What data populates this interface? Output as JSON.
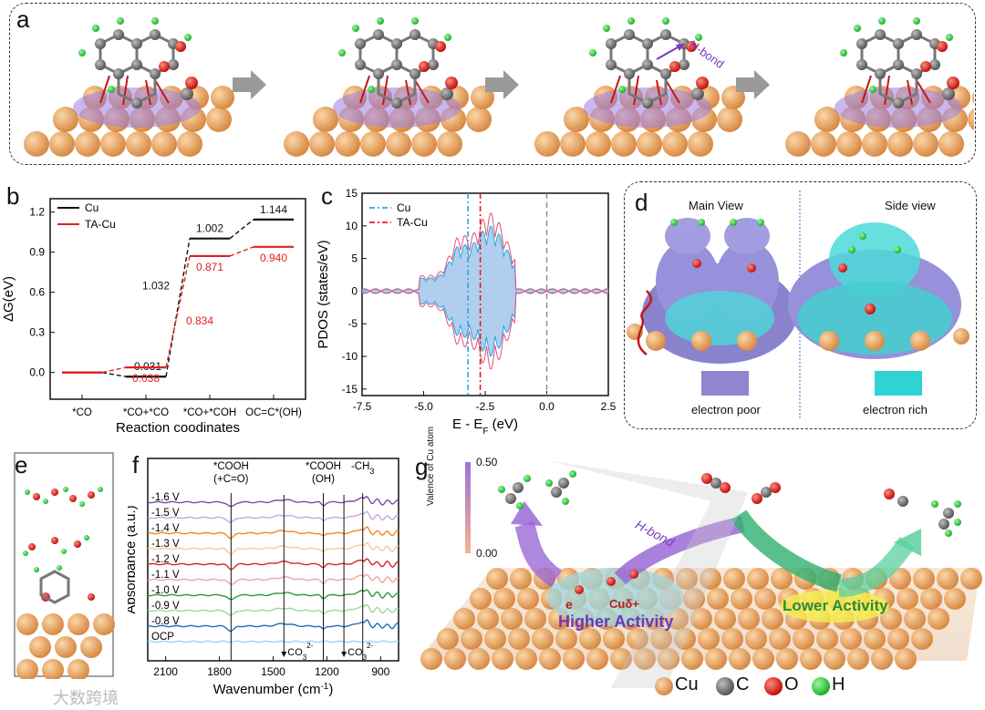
{
  "panels": {
    "a": {
      "label": "a",
      "annotation": "H-bond"
    },
    "b": {
      "label": "b"
    },
    "c": {
      "label": "c"
    },
    "d": {
      "label": "d",
      "main_view": "Main View",
      "side_view": "Side view",
      "poor": "electron poor",
      "rich": "electron rich",
      "poor_color": "#8f86cf",
      "rich_color": "#2fd3d3"
    },
    "e": {
      "label": "e"
    },
    "f": {
      "label": "f"
    },
    "g": {
      "label": "g",
      "hbond": "H-bond",
      "electron": "e",
      "cu_label": "Cuδ+",
      "higher": "Higher Activity",
      "lower": "Lower Activity",
      "colorbar_title": "Valence of Cu atom",
      "colorbar_max": "0.50",
      "colorbar_min": "0.00",
      "legend": [
        {
          "name": "Cu",
          "color": "#e5a468"
        },
        {
          "name": "C",
          "color": "#6b6b6b"
        },
        {
          "name": "O",
          "color": "#e0221f"
        },
        {
          "name": "H",
          "color": "#26d33a"
        }
      ]
    }
  },
  "chart_data": [
    {
      "type": "line",
      "panel": "b",
      "ylabel": "ΔG(eV)",
      "xlabel": "Reaction coodinates",
      "categories": [
        "*CO",
        "*CO+*CO",
        "*CO+*COH",
        "OC=C*(OH)"
      ],
      "ylim": [
        -0.2,
        1.3
      ],
      "yticks": [
        "0.0",
        "0.3",
        "0.6",
        "0.9",
        "1.2"
      ],
      "series": [
        {
          "name": "Cu",
          "color": "#111111",
          "values": [
            0.0,
            -0.031,
            1.002,
            1.144
          ],
          "labels": [
            "",
            "-0.031",
            "1.002",
            "1.144"
          ],
          "barrier_label": "1.032"
        },
        {
          "name": "TA-Cu",
          "color": "#e02020",
          "values": [
            0.0,
            0.038,
            0.871,
            0.94
          ],
          "labels": [
            "",
            "0.038",
            "0.871",
            "0.940"
          ],
          "barrier_label": "0.834"
        }
      ]
    },
    {
      "type": "area",
      "panel": "c",
      "ylabel": "PDOS (states/eV)",
      "xlabel": "E - E",
      "xlabel_sub": "F",
      "xlabel_unit": " (eV)",
      "xlim": [
        -7.5,
        2.5
      ],
      "ylim": [
        -16,
        15
      ],
      "xticks": [
        "-7.5",
        "-5.0",
        "-2.5",
        "0.0",
        "2.5"
      ],
      "yticks": [
        "15",
        "10",
        "5",
        "0",
        "-5",
        "-10",
        "-15"
      ],
      "series": [
        {
          "name": "Cu",
          "color": "#2aa8d8",
          "d_band_center": -3.2
        },
        {
          "name": "TA-Cu",
          "color": "#e02020",
          "d_band_center": -2.7
        }
      ],
      "fermi_level": 0.0
    },
    {
      "type": "line",
      "panel": "f",
      "ylabel": "Absorbance (a.u.)",
      "xlabel": "Wavenumber (cm",
      "xlabel_sup": "-1",
      "xlabel_end": ")",
      "xlim": [
        2200,
        800
      ],
      "xticks": [
        "2100",
        "1800",
        "1500",
        "1200",
        "900"
      ],
      "series": [
        {
          "name": "-1.6 V",
          "color": "#7b4aa8"
        },
        {
          "name": "-1.5 V",
          "color": "#c7a6e0"
        },
        {
          "name": "-1.4 V",
          "color": "#f08a1c"
        },
        {
          "name": "-1.3 V",
          "color": "#f5c89a"
        },
        {
          "name": "-1.2 V",
          "color": "#d6242a"
        },
        {
          "name": "-1.1 V",
          "color": "#f4a3a3"
        },
        {
          "name": "-1.0 V",
          "color": "#2e9a3a"
        },
        {
          "name": "-0.9 V",
          "color": "#9ed79a"
        },
        {
          "name": "-0.8 V",
          "color": "#1f6fb8"
        },
        {
          "name": "OCP",
          "color": "#9fd3ef"
        }
      ],
      "annotations": [
        {
          "text": "*COOH",
          "text2": "(+C=O)",
          "x": 1735
        },
        {
          "text": "*COOH",
          "text2": "(OH)",
          "x": 1220
        },
        {
          "text": "-CH",
          "sub": "3",
          "x": 1000
        },
        {
          "text": "CO",
          "sub": "3",
          "sup": "2-",
          "x": 1440
        },
        {
          "text": "CO",
          "sub": "3",
          "sup": "2-",
          "x": 1105
        }
      ]
    }
  ],
  "watermark": "大数跨境"
}
